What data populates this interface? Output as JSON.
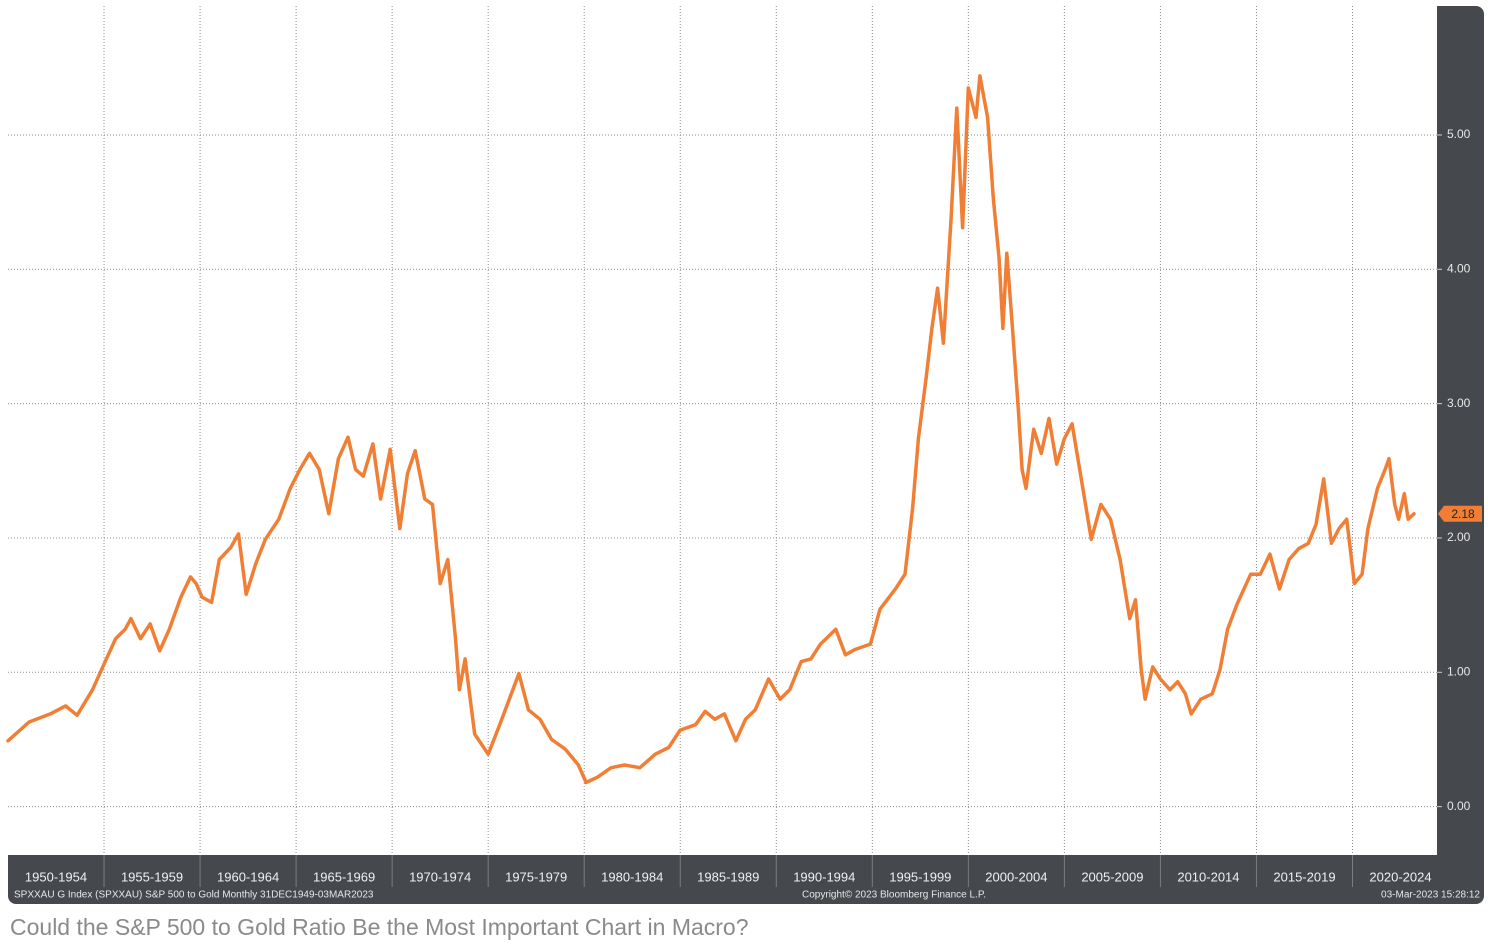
{
  "chart_data": {
    "type": "line",
    "color": "#f07f35",
    "grid": true,
    "log_scale": false,
    "x": [
      1950.0,
      1951.1,
      1952.2,
      1953.0,
      1953.6,
      1954.4,
      1955.0,
      1955.6,
      1956.1,
      1956.4,
      1956.9,
      1957.4,
      1957.9,
      1958.4,
      1959.0,
      1959.5,
      1959.8,
      1960.1,
      1960.6,
      1961.0,
      1961.6,
      1962.0,
      1962.4,
      1962.9,
      1963.4,
      1964.1,
      1964.7,
      1965.2,
      1965.7,
      1966.2,
      1966.7,
      1967.2,
      1967.7,
      1968.1,
      1968.5,
      1969.0,
      1969.4,
      1969.9,
      1970.4,
      1970.8,
      1971.2,
      1971.7,
      1972.1,
      1972.5,
      1972.9,
      1973.3,
      1973.5,
      1973.8,
      1974.3,
      1975.0,
      1975.6,
      1976.1,
      1976.6,
      1977.1,
      1977.7,
      1978.3,
      1979.0,
      1979.7,
      1980.1,
      1980.7,
      1981.4,
      1982.1,
      1982.9,
      1983.7,
      1984.4,
      1985.0,
      1985.8,
      1986.3,
      1986.8,
      1987.3,
      1987.9,
      1988.4,
      1988.9,
      1989.6,
      1990.2,
      1990.7,
      1991.3,
      1991.8,
      1992.3,
      1993.1,
      1993.6,
      1994.1,
      1994.9,
      1995.4,
      1996.2,
      1996.7,
      1997.1,
      1997.4,
      1997.8,
      1998.1,
      1998.4,
      1998.7,
      1999.1,
      1999.4,
      1999.7,
      2000.0,
      2000.4,
      2000.6,
      2001.0,
      2001.3,
      2001.6,
      2001.8,
      2002.0,
      2002.3,
      2002.6,
      2002.8,
      2003.0,
      2003.4,
      2003.8,
      2004.2,
      2004.6,
      2005.0,
      2005.4,
      2005.8,
      2006.4,
      2006.9,
      2007.4,
      2007.9,
      2008.4,
      2008.7,
      2009.0,
      2009.2,
      2009.6,
      2010.0,
      2010.5,
      2010.9,
      2011.3,
      2011.6,
      2012.1,
      2012.7,
      2013.1,
      2013.5,
      2014.0,
      2014.7,
      2015.2,
      2015.7,
      2016.2,
      2016.7,
      2017.2,
      2017.7,
      2018.1,
      2018.5,
      2018.9,
      2019.3,
      2019.7,
      2020.1,
      2020.5,
      2020.8,
      2021.3,
      2021.7,
      2021.9,
      2022.2,
      2022.4,
      2022.7,
      2022.9,
      2023.2
    ],
    "values": [
      0.49,
      0.63,
      0.69,
      0.75,
      0.68,
      0.87,
      1.06,
      1.25,
      1.32,
      1.4,
      1.25,
      1.36,
      1.16,
      1.32,
      1.56,
      1.71,
      1.66,
      1.56,
      1.52,
      1.84,
      1.93,
      2.03,
      1.58,
      1.81,
      1.99,
      2.14,
      2.37,
      2.51,
      2.63,
      2.51,
      2.18,
      2.59,
      2.75,
      2.51,
      2.46,
      2.7,
      2.29,
      2.66,
      2.07,
      2.48,
      2.65,
      2.29,
      2.25,
      1.66,
      1.84,
      1.25,
      0.87,
      1.1,
      0.54,
      0.39,
      0.61,
      0.8,
      0.99,
      0.72,
      0.65,
      0.5,
      0.43,
      0.31,
      0.18,
      0.22,
      0.29,
      0.31,
      0.29,
      0.39,
      0.44,
      0.57,
      0.61,
      0.71,
      0.65,
      0.69,
      0.49,
      0.65,
      0.72,
      0.95,
      0.8,
      0.87,
      1.08,
      1.1,
      1.21,
      1.32,
      1.13,
      1.17,
      1.21,
      1.47,
      1.62,
      1.73,
      2.22,
      2.74,
      3.19,
      3.56,
      3.86,
      3.45,
      4.38,
      5.2,
      4.31,
      5.35,
      5.13,
      5.44,
      5.13,
      4.53,
      4.08,
      3.56,
      4.12,
      3.56,
      2.96,
      2.51,
      2.37,
      2.81,
      2.63,
      2.89,
      2.55,
      2.74,
      2.85,
      2.51,
      1.99,
      2.25,
      2.14,
      1.84,
      1.4,
      1.54,
      1.02,
      0.8,
      1.04,
      0.95,
      0.87,
      0.93,
      0.84,
      0.69,
      0.8,
      0.84,
      1.02,
      1.32,
      1.51,
      1.73,
      1.73,
      1.88,
      1.62,
      1.84,
      1.92,
      1.96,
      2.1,
      2.44,
      1.96,
      2.07,
      2.14,
      1.66,
      1.73,
      2.07,
      2.37,
      2.51,
      2.59,
      2.25,
      2.14,
      2.33,
      2.14,
      2.18
    ],
    "xlim": [
      1950,
      2024.4
    ],
    "xticks": [
      {
        "value": 1952.5,
        "label": "1950-1954"
      },
      {
        "value": 1957.5,
        "label": "1955-1959"
      },
      {
        "value": 1962.5,
        "label": "1960-1964"
      },
      {
        "value": 1967.5,
        "label": "1965-1969"
      },
      {
        "value": 1972.5,
        "label": "1970-1974"
      },
      {
        "value": 1977.5,
        "label": "1975-1979"
      },
      {
        "value": 1982.5,
        "label": "1980-1984"
      },
      {
        "value": 1987.5,
        "label": "1985-1989"
      },
      {
        "value": 1992.5,
        "label": "1990-1994"
      },
      {
        "value": 1997.5,
        "label": "1995-1999"
      },
      {
        "value": 2002.5,
        "label": "2000-2004"
      },
      {
        "value": 2007.5,
        "label": "2005-2009"
      },
      {
        "value": 2012.5,
        "label": "2010-2014"
      },
      {
        "value": 2017.5,
        "label": "2015-2019"
      },
      {
        "value": 2022.5,
        "label": "2020-2024"
      }
    ],
    "ylim": [
      -0.36,
      5.96
    ],
    "yticks": [
      {
        "value": 0,
        "label": "0.00"
      },
      {
        "value": 1,
        "label": "1.00"
      },
      {
        "value": 2,
        "label": "2.00"
      },
      {
        "value": 3,
        "label": "3.00"
      },
      {
        "value": 4,
        "label": "4.00"
      },
      {
        "value": 5,
        "label": "5.00"
      }
    ],
    "annotations": [
      {
        "text": "2.18",
        "y": 2.18
      }
    ],
    "footer_left": "SPXXAU G Index (SPXXAU) S&P 500 to Gold  Monthly 31DEC1949-03MAR2023",
    "footer_center": "Copyright© 2023 Bloomberg Finance L.P.",
    "footer_right": "03-Mar-2023 15:28:12"
  },
  "caption": "Could the S&P 500 to Gold Ratio Be the Most Important Chart in Macro?"
}
